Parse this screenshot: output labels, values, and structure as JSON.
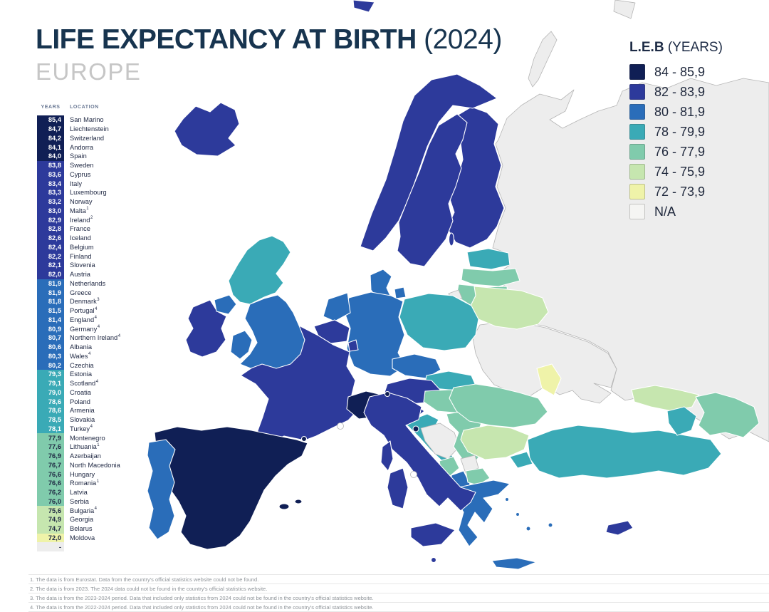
{
  "header": {
    "title": "LIFE EXPECTANCY AT BIRTH",
    "year": "(2024)",
    "subtitle": "EUROPE"
  },
  "legend": {
    "title": "L.E.B",
    "title_suffix": "(YEARS)",
    "items": [
      {
        "label": "84 - 85,9",
        "band": "b84"
      },
      {
        "label": "82 - 83,9",
        "band": "b82"
      },
      {
        "label": "80 - 81,9",
        "band": "b80"
      },
      {
        "label": "78 - 79,9",
        "band": "b78"
      },
      {
        "label": "76 - 77,9",
        "band": "b76"
      },
      {
        "label": "74 - 75,9",
        "band": "b74"
      },
      {
        "label": "72 - 73,9",
        "band": "b72"
      },
      {
        "label": "N/A",
        "band": "na"
      }
    ]
  },
  "table": {
    "col_years": "YEARS",
    "col_location": "LOCATION",
    "rows": [
      {
        "v": "85,4",
        "n": "San Marino",
        "fn": "",
        "b": "b84"
      },
      {
        "v": "84,7",
        "n": "Liechtenstein",
        "fn": "",
        "b": "b84"
      },
      {
        "v": "84,2",
        "n": "Switzerland",
        "fn": "",
        "b": "b84"
      },
      {
        "v": "84,1",
        "n": "Andorra",
        "fn": "",
        "b": "b84"
      },
      {
        "v": "84,0",
        "n": "Spain",
        "fn": "",
        "b": "b84"
      },
      {
        "v": "83,8",
        "n": "Sweden",
        "fn": "",
        "b": "b82"
      },
      {
        "v": "83,6",
        "n": "Cyprus",
        "fn": "",
        "b": "b82"
      },
      {
        "v": "83,4",
        "n": "Italy",
        "fn": "",
        "b": "b82"
      },
      {
        "v": "83,3",
        "n": "Luxembourg",
        "fn": "",
        "b": "b82"
      },
      {
        "v": "83,2",
        "n": "Norway",
        "fn": "",
        "b": "b82"
      },
      {
        "v": "83,0",
        "n": "Malta",
        "fn": "1",
        "b": "b82"
      },
      {
        "v": "82,9",
        "n": "Ireland",
        "fn": "2",
        "b": "b82"
      },
      {
        "v": "82,8",
        "n": "France",
        "fn": "",
        "b": "b82"
      },
      {
        "v": "82,6",
        "n": "Iceland",
        "fn": "",
        "b": "b82"
      },
      {
        "v": "82,4",
        "n": "Belgium",
        "fn": "",
        "b": "b82"
      },
      {
        "v": "82,2",
        "n": "Finland",
        "fn": "",
        "b": "b82"
      },
      {
        "v": "82,1",
        "n": "Slovenia",
        "fn": "",
        "b": "b82"
      },
      {
        "v": "82,0",
        "n": "Austria",
        "fn": "",
        "b": "b82"
      },
      {
        "v": "81,9",
        "n": "Netherlands",
        "fn": "",
        "b": "b80"
      },
      {
        "v": "81,9",
        "n": "Greece",
        "fn": "",
        "b": "b80"
      },
      {
        "v": "81,8",
        "n": "Denmark",
        "fn": "3",
        "b": "b80"
      },
      {
        "v": "81,5",
        "n": "Portugal",
        "fn": "4",
        "b": "b80"
      },
      {
        "v": "81,4",
        "n": "England",
        "fn": "4",
        "b": "b80"
      },
      {
        "v": "80,9",
        "n": "Germany",
        "fn": "4",
        "b": "b80"
      },
      {
        "v": "80,7",
        "n": "Northern Ireland",
        "fn": "4",
        "b": "b80"
      },
      {
        "v": "80,6",
        "n": "Albania",
        "fn": "",
        "b": "b80"
      },
      {
        "v": "80,3",
        "n": "Wales",
        "fn": "4",
        "b": "b80"
      },
      {
        "v": "80,2",
        "n": "Czechia",
        "fn": "",
        "b": "b80"
      },
      {
        "v": "79,3",
        "n": "Estonia",
        "fn": "",
        "b": "b78"
      },
      {
        "v": "79,1",
        "n": "Scotland",
        "fn": "4",
        "b": "b78"
      },
      {
        "v": "79,0",
        "n": "Croatia",
        "fn": "",
        "b": "b78"
      },
      {
        "v": "78,6",
        "n": "Poland",
        "fn": "",
        "b": "b78"
      },
      {
        "v": "78,6",
        "n": "Armenia",
        "fn": "",
        "b": "b78"
      },
      {
        "v": "78,5",
        "n": "Slovakia",
        "fn": "",
        "b": "b78"
      },
      {
        "v": "78,1",
        "n": "Turkey",
        "fn": "4",
        "b": "b78"
      },
      {
        "v": "77,9",
        "n": "Montenegro",
        "fn": "",
        "b": "b76"
      },
      {
        "v": "77,6",
        "n": "Lithuania",
        "fn": "1",
        "b": "b76"
      },
      {
        "v": "76,9",
        "n": "Azerbaijan",
        "fn": "",
        "b": "b76"
      },
      {
        "v": "76,7",
        "n": "North Macedonia",
        "fn": "",
        "b": "b76"
      },
      {
        "v": "76,6",
        "n": "Hungary",
        "fn": "",
        "b": "b76"
      },
      {
        "v": "76,6",
        "n": "Romania",
        "fn": "1",
        "b": "b76"
      },
      {
        "v": "76,2",
        "n": "Latvia",
        "fn": "",
        "b": "b76"
      },
      {
        "v": "76,0",
        "n": "Serbia",
        "fn": "",
        "b": "b76"
      },
      {
        "v": "75,6",
        "n": "Bulgaria",
        "fn": "4",
        "b": "b74"
      },
      {
        "v": "74,9",
        "n": "Georgia",
        "fn": "",
        "b": "b74"
      },
      {
        "v": "74,7",
        "n": "Belarus",
        "fn": "",
        "b": "b74"
      },
      {
        "v": "72,0",
        "n": "Moldova",
        "fn": "",
        "b": "b72"
      },
      {
        "v": "-",
        "n": "",
        "fn": "",
        "b": "na"
      }
    ]
  },
  "footnotes": [
    "1. The data is from Eurostat. Data from the country's official statistics website could not be found.",
    "2. The data is from 2023. The 2024 data could not be found in the country's official statistics website.",
    "3. The data is from the 2023-2024 period. Data that included only statistics from 2024 could not be found in the country's official statistics website.",
    "4. The data is from the 2022-2024 period. Data that included only statistics from 2024 could not be found in the country's official statistics website."
  ],
  "map": {
    "band_colors": {
      "b84": "#101f55",
      "b82": "#2d3a9b",
      "b80": "#2a6db9",
      "b78": "#3aaab6",
      "b76": "#80cbac",
      "b74": "#c6e6af",
      "b72": "#eff3a9",
      "na": "#ededed",
      "white": "#ffffff"
    },
    "dark_text_bands": [
      "b76",
      "b74",
      "b72",
      "na"
    ],
    "regions": {
      "russia": "na",
      "ukraine": "na",
      "novaya-zemlya": "na",
      "arctic-island": "na",
      "svalbard": "b82",
      "iceland": "b82",
      "norway": "b82",
      "sweden": "b82",
      "gotland": "b82",
      "finland": "b82",
      "denmark": "b80",
      "denmark-island": "b80",
      "estonia": "b78",
      "latvia": "b76",
      "lithuania": "b76",
      "kaliningrad": "na",
      "belarus": "b74",
      "poland": "b78",
      "germany": "b80",
      "netherlands": "b80",
      "belgium": "b82",
      "luxembourg": "b82",
      "czechia": "b80",
      "slovakia": "b78",
      "austria": "b82",
      "hungary": "b76",
      "france": "b82",
      "corsica": "b82",
      "switzerland": "b84",
      "slovenia": "b82",
      "croatia": "b78",
      "bosnia": "na",
      "serbia": "b76",
      "montenegro": "b76",
      "kosovo": "na",
      "albania": "b80",
      "north-macedonia": "b76",
      "romania": "b76",
      "moldova": "b72",
      "bulgaria": "b74",
      "greece": "b80",
      "crete": "b80",
      "aegean-island-1": "b80",
      "aegean-island-2": "b80",
      "aegean-island-3": "b80",
      "rhodes": "b80",
      "turkey": "b78",
      "turkey-thrace": "b78",
      "cyprus": "b82",
      "georgia": "b74",
      "armenia": "b78",
      "azerbaijan": "b76",
      "spain": "b84",
      "portugal": "b80",
      "balearic-1": "b84",
      "balearic-2": "b84",
      "italy": "b82",
      "sicily": "b82",
      "sardinia": "b82",
      "ireland": "b82",
      "northern-ireland": "b80",
      "scotland": "b78",
      "england": "b80",
      "wales": "b80",
      "san-marino": "b84",
      "liechtenstein": "b84",
      "andorra": "b84",
      "malta": "b82",
      "monaco": "white",
      "vatican": "white"
    }
  }
}
